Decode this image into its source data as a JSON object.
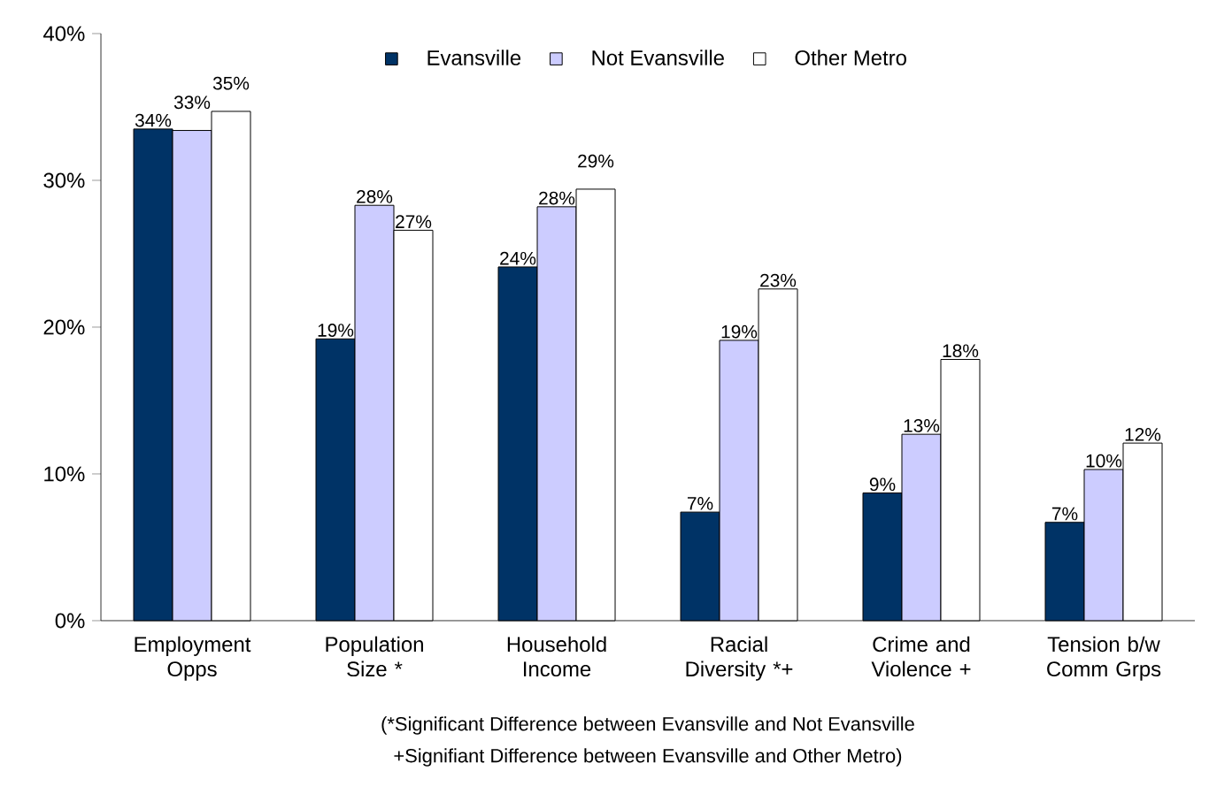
{
  "chart_data": {
    "type": "bar",
    "categories": [
      "Employment Opps",
      "Population Size *",
      "Household Income",
      "Racial Diversity *+",
      "Crime and Violence +",
      "Tension b/w Comm Grps"
    ],
    "series": [
      {
        "name": "Evansville",
        "color": "#003366",
        "values": [
          33.5,
          19.2,
          24.1,
          7.4,
          8.7,
          6.7
        ],
        "value_labels": [
          "34%",
          "19%",
          "24%",
          "7%",
          "9%",
          "7%"
        ]
      },
      {
        "name": "Not Evansville",
        "color": "#ccccff",
        "values": [
          33.4,
          28.3,
          28.2,
          19.1,
          12.7,
          10.3
        ],
        "value_labels": [
          "33%",
          "28%",
          "28%",
          "19%",
          "13%",
          "10%"
        ]
      },
      {
        "name": "Other Metro",
        "color": "#ffffff",
        "values": [
          34.7,
          26.6,
          29.4,
          22.6,
          17.8,
          12.1
        ],
        "value_labels": [
          "35%",
          "27%",
          "29%",
          "23%",
          "18%",
          "12%"
        ]
      }
    ],
    "ylim": [
      0,
      40
    ],
    "yticks": [
      {
        "value": 0,
        "label": "0%"
      },
      {
        "value": 10,
        "label": "10%"
      },
      {
        "value": 20,
        "label": "20%"
      },
      {
        "value": 30,
        "label": "30%"
      },
      {
        "value": 40,
        "label": "40%"
      }
    ],
    "legend": "top",
    "grid": false,
    "annotations": [
      "(*Significant Difference between Evansville and Not Evansville",
      "+Signifiant Difference between Evansville and Other Metro)"
    ]
  }
}
